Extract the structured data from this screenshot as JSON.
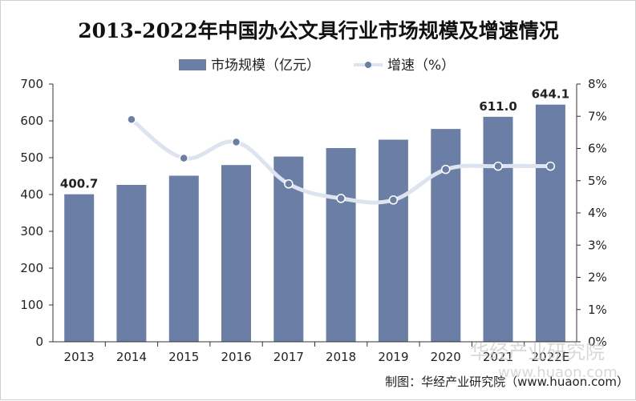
{
  "chart_data": {
    "type": "bar",
    "title": "2013-2022年中国办公文具行业市场规模及增速情况",
    "categories": [
      "2013",
      "2014",
      "2015",
      "2016",
      "2017",
      "2018",
      "2019",
      "2020",
      "2021",
      "2022E"
    ],
    "series": [
      {
        "name": "市场规模（亿元）",
        "type": "bar",
        "axis": "left",
        "color": "#6b7fa6",
        "values": [
          400.7,
          426,
          451,
          480,
          503,
          526,
          549,
          578,
          611.0,
          644.1
        ],
        "data_labels": {
          "0": "400.7",
          "8": "611.0",
          "9": "644.1"
        }
      },
      {
        "name": "增速（%）",
        "type": "line",
        "axis": "right",
        "color": "#6b7fa6",
        "line_color": "#dde3ef",
        "values": [
          null,
          6.9,
          5.7,
          6.2,
          4.9,
          4.45,
          4.4,
          5.35,
          5.45,
          5.45
        ]
      }
    ],
    "y_left": {
      "ylim": [
        0,
        700
      ],
      "ticks": [
        "0",
        "100",
        "200",
        "300",
        "400",
        "500",
        "600",
        "700"
      ]
    },
    "y_right": {
      "ylim": [
        0,
        8
      ],
      "ticks": [
        "0%",
        "1%",
        "2%",
        "3%",
        "4%",
        "5%",
        "6%",
        "7%",
        "8%"
      ]
    },
    "legend_position": "top-center",
    "grid": false
  },
  "source_text": "制图：华经产业研究院（www.huaon.com）",
  "watermark": {
    "line1": "华经产业研究院",
    "line2": "www.huaon.com"
  }
}
